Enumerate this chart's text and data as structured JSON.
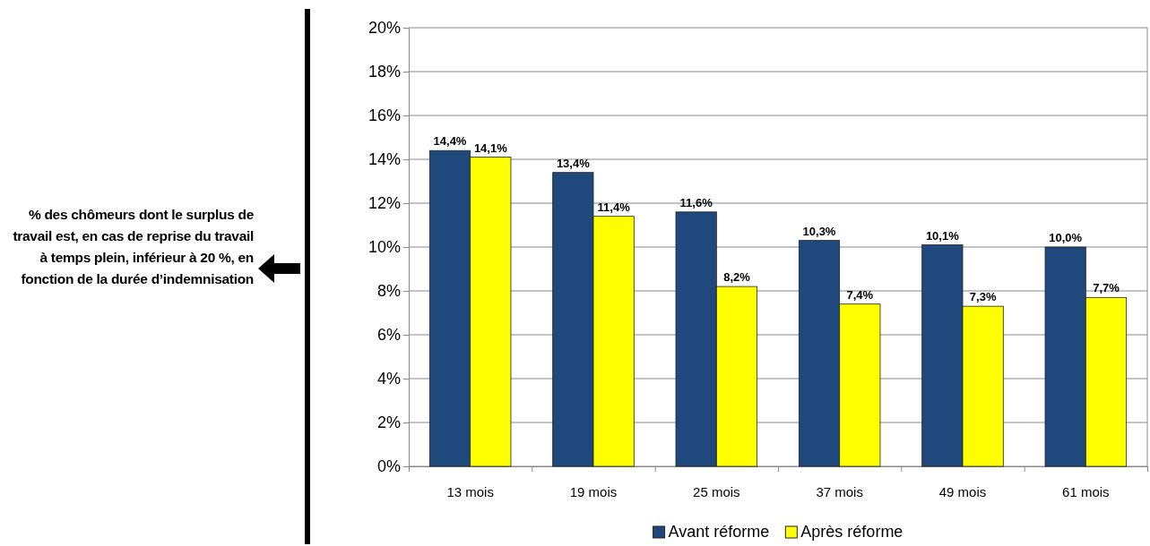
{
  "chart_data": {
    "type": "bar",
    "title": "% des chômeurs dont le surplus de travail est, en cas de reprise du travail à temps plein, inférieur à 20 %, en fonction de la durée d’indemnisation",
    "categories": [
      "13 mois",
      "19 mois",
      "25 mois",
      "37 mois",
      "49 mois",
      "61 mois"
    ],
    "series": [
      {
        "name": "Avant réforme",
        "color": "#1f497d",
        "values": [
          14.4,
          13.4,
          11.6,
          10.3,
          10.1,
          10.0
        ],
        "value_labels": [
          "14,4%",
          "13,4%",
          "11,6%",
          "10,3%",
          "10,1%",
          "10,0%"
        ]
      },
      {
        "name": "Après réforme",
        "color": "#ffff00",
        "values": [
          14.1,
          11.4,
          8.2,
          7.4,
          7.3,
          7.7
        ],
        "value_labels": [
          "14,1%",
          "11,4%",
          "8,2%",
          "7,4%",
          "7,3%",
          "7,7%"
        ]
      }
    ],
    "ylim": [
      0,
      20
    ],
    "yticks": [
      {
        "value": 0,
        "label": "0%"
      },
      {
        "value": 2,
        "label": "2%"
      },
      {
        "value": 4,
        "label": "4%"
      },
      {
        "value": 6,
        "label": "6%"
      },
      {
        "value": 8,
        "label": "8%"
      },
      {
        "value": 10,
        "label": "10%"
      },
      {
        "value": 12,
        "label": "12%"
      },
      {
        "value": 14,
        "label": "14%"
      },
      {
        "value": 16,
        "label": "16%"
      },
      {
        "value": 18,
        "label": "18%"
      },
      {
        "value": 20,
        "label": "20%"
      }
    ],
    "grid": "y",
    "legend": "bottom"
  }
}
